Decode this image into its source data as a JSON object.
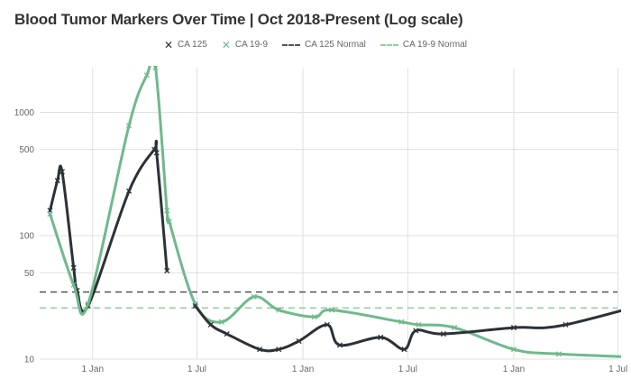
{
  "title": "Blood Tumor Markers Over Time | Oct 2018-Present (Log scale)",
  "legend": {
    "ca125": "CA 125",
    "ca199": "CA 19-9",
    "ca125_normal": "CA 125 Normal",
    "ca199_normal": "CA 19-9 Normal"
  },
  "chart_data": {
    "type": "line",
    "title": "Blood Tumor Markers Over Time | Oct 2018-Present (Log scale)",
    "xlabel": "",
    "ylabel": "",
    "yscale": "log",
    "ylim": [
      10,
      2300
    ],
    "xlim": [
      "2018-10-01",
      "2021-06-30"
    ],
    "y_ticks": [
      10,
      50,
      100,
      500,
      1000
    ],
    "x_ticks": [
      {
        "date": "2019-01-01",
        "label": "1 Jan"
      },
      {
        "date": "2019-07-01",
        "label": "1 Jul"
      },
      {
        "date": "2020-01-01",
        "label": "1 Jan"
      },
      {
        "date": "2020-07-01",
        "label": "1 Jul"
      },
      {
        "date": "2021-01-01",
        "label": "1 Jan"
      },
      {
        "date": "2021-07-01",
        "label": "1 Jul"
      }
    ],
    "grid": true,
    "legend_position": "top",
    "series": [
      {
        "name": "CA 125",
        "color": "#2b3238",
        "marker": "x",
        "points": [
          [
            "2018-10-19",
            160
          ],
          [
            "2018-11-01",
            280
          ],
          [
            "2018-11-09",
            330
          ],
          [
            "2018-11-29",
            55
          ],
          [
            "2018-12-05",
            36
          ],
          [
            "2018-12-24",
            27
          ],
          [
            "2019-03-05",
            230
          ],
          [
            "2019-04-18",
            500
          ],
          [
            "2019-04-22",
            470
          ],
          [
            "2019-05-10",
            52
          ]
        ]
      },
      {
        "name": "CA 19-9",
        "color": "#6fb98b",
        "marker": "x",
        "points": [
          [
            "2018-10-19",
            150
          ],
          [
            "2018-11-29",
            40
          ],
          [
            "2018-12-24",
            28
          ],
          [
            "2019-03-05",
            780
          ],
          [
            "2019-04-05",
            2000
          ],
          [
            "2019-04-20",
            2300
          ],
          [
            "2019-05-10",
            160
          ],
          [
            "2019-05-14",
            130
          ],
          [
            "2019-06-28",
            28
          ],
          [
            "2019-08-13",
            20
          ],
          [
            "2019-10-08",
            32
          ],
          [
            "2019-11-20",
            25
          ],
          [
            "2020-01-21",
            22
          ],
          [
            "2020-02-20",
            25
          ],
          [
            "2020-06-20",
            20
          ],
          [
            "2020-07-20",
            19
          ],
          [
            "2020-09-20",
            18
          ],
          [
            "2021-01-01",
            12
          ],
          [
            "2021-03-20",
            11
          ],
          [
            "2021-11-01",
            10
          ]
        ]
      },
      {
        "name": "CA 125",
        "color": "#2b3238",
        "marker": "x",
        "points": [
          [
            "2019-06-28",
            27
          ],
          [
            "2019-07-25",
            19
          ],
          [
            "2019-08-22",
            16
          ],
          [
            "2019-10-18",
            12
          ],
          [
            "2019-11-20",
            12
          ],
          [
            "2019-12-25",
            14
          ],
          [
            "2020-02-12",
            19
          ],
          [
            "2020-03-05",
            13
          ],
          [
            "2020-05-15",
            15
          ],
          [
            "2020-06-25",
            12
          ],
          [
            "2020-07-15",
            17
          ],
          [
            "2020-09-01",
            16
          ],
          [
            "2021-01-01",
            18
          ],
          [
            "2021-04-01",
            19
          ],
          [
            "2021-11-01",
            35
          ]
        ]
      },
      {
        "name": "CA 125 Normal",
        "color": "#555555",
        "style": "dashed",
        "points": [
          [
            "2018-10-01",
            35
          ],
          [
            "2021-11-01",
            35
          ]
        ]
      },
      {
        "name": "CA 19-9 Normal",
        "color": "#8fd19e",
        "style": "dashed",
        "points": [
          [
            "2018-10-01",
            26
          ],
          [
            "2021-11-01",
            26
          ]
        ]
      }
    ]
  }
}
